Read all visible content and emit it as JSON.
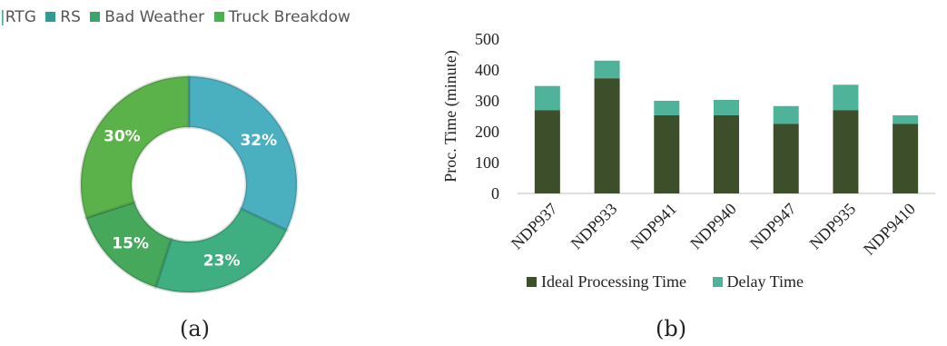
{
  "captions": {
    "a": "(a)",
    "b": "(b)"
  },
  "chart_data": [
    {
      "type": "pie",
      "donut": true,
      "legend_position": "top",
      "legend_entries": [
        {
          "label": "RTG",
          "color": "#2e9c93"
        },
        {
          "label": "RS",
          "color": "#2e9c93"
        },
        {
          "label": "Bad Weather",
          "color": "#3aa56a"
        },
        {
          "label": "Truck Breakdow",
          "color": "#4caf50"
        }
      ],
      "slices": [
        {
          "label": "RS",
          "value": 32,
          "text": "32%",
          "color": "#4aafbf"
        },
        {
          "label": "Bad Weather",
          "value": 23,
          "text": "23%",
          "color": "#3fae80"
        },
        {
          "label": "Truck Breakdown",
          "value": 15,
          "text": "15%",
          "color": "#45a85a"
        },
        {
          "label": "RTG",
          "value": 30,
          "text": "30%",
          "color": "#5cb24a"
        }
      ]
    },
    {
      "type": "bar",
      "stacked": true,
      "categories": [
        "NDP937",
        "NDP933",
        "NDP941",
        "NDP940",
        "NDP947",
        "NDP935",
        "NDP9410"
      ],
      "series": [
        {
          "name": "Ideal Processing Time",
          "color": "#3d4e2a",
          "values": [
            270,
            373,
            253,
            253,
            225,
            270,
            225
          ]
        },
        {
          "name": "Delay Time",
          "color": "#4fb39a",
          "values": [
            78,
            57,
            47,
            50,
            58,
            82,
            28
          ]
        }
      ],
      "ylabel": "Proc. Time (minute)",
      "ylim": [
        0,
        500
      ],
      "yticks": [
        "0",
        "100",
        "200",
        "300",
        "400",
        "500"
      ],
      "legend_position": "bottom",
      "grid": false
    }
  ]
}
